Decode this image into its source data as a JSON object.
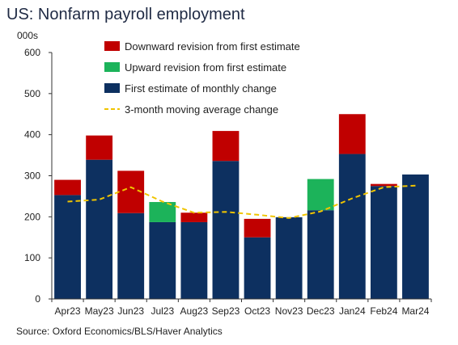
{
  "title": "US: Nonfarm payroll employment",
  "unit": "000s",
  "source": "Source: Oxford Economics/BLS/Haver Analytics",
  "colors": {
    "first_estimate": "#0d3060",
    "downward": "#c00000",
    "upward": "#1cb35a",
    "moving_average": "#f0c400"
  },
  "chart_data": {
    "type": "bar",
    "stacked": true,
    "categories": [
      "Apr23",
      "May23",
      "Jun23",
      "Jul23",
      "Aug23",
      "Sep23",
      "Oct23",
      "Nov23",
      "Dec23",
      "Jan24",
      "Feb24",
      "Mar24"
    ],
    "ylim": [
      0,
      600
    ],
    "yticks": [
      0,
      100,
      200,
      300,
      400,
      500,
      600
    ],
    "series": [
      {
        "name": "Downward revision from first estimate",
        "color_key": "downward",
        "values": [
          37,
          59,
          103,
          0,
          23,
          73,
          45,
          0,
          0,
          97,
          5,
          0
        ]
      },
      {
        "name": "Upward revision from first estimate",
        "color_key": "upward",
        "values": [
          0,
          0,
          0,
          49,
          0,
          0,
          0,
          0,
          76,
          0,
          0,
          0
        ]
      },
      {
        "name": "First estimate of monthly change",
        "color_key": "first_estimate",
        "values": [
          253,
          339,
          209,
          187,
          187,
          336,
          150,
          199,
          216,
          353,
          275,
          303
        ]
      },
      {
        "name": "3-month moving average change",
        "type": "line",
        "color_key": "moving_average",
        "values": [
          237,
          242,
          272,
          237,
          210,
          212,
          205,
          197,
          213,
          245,
          272,
          276
        ]
      }
    ],
    "legend_position": "top-center",
    "grid": false
  }
}
